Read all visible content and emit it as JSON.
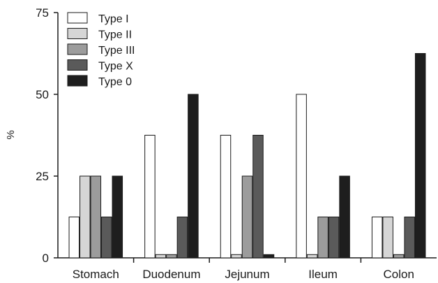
{
  "chart_data": {
    "type": "bar",
    "title": "",
    "xlabel": "",
    "ylabel": "%",
    "ylim": [
      0,
      75
    ],
    "yticks": [
      0,
      25,
      50,
      75
    ],
    "grid": false,
    "legend_position": "top-left",
    "categories": [
      "Stomach",
      "Duodenum",
      "Jejunum",
      "Ileum",
      "Colon"
    ],
    "series": [
      {
        "name": "Type I",
        "color": "#ffffff",
        "values": [
          12.5,
          37.5,
          37.5,
          50.0,
          12.5
        ]
      },
      {
        "name": "Type II",
        "color": "#d6d6d6",
        "values": [
          25.0,
          1.0,
          1.0,
          1.0,
          12.5
        ]
      },
      {
        "name": "Type III",
        "color": "#9c9c9c",
        "values": [
          25.0,
          1.0,
          25.0,
          12.5,
          1.0
        ]
      },
      {
        "name": "Type X",
        "color": "#5a5a5a",
        "values": [
          12.5,
          12.5,
          37.5,
          12.5,
          12.5
        ]
      },
      {
        "name": "Type 0",
        "color": "#1e1e1e",
        "values": [
          25.0,
          50.0,
          1.0,
          25.0,
          62.5
        ]
      }
    ]
  }
}
